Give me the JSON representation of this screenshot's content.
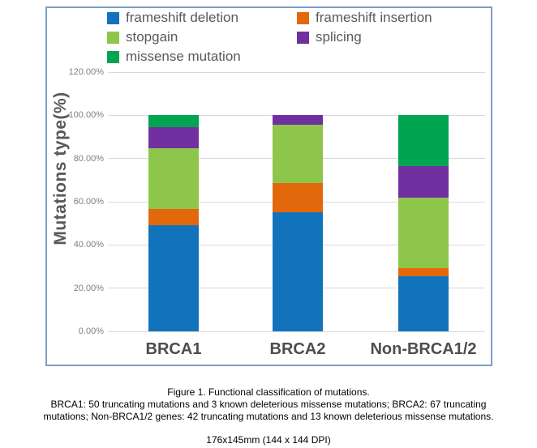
{
  "chart_data": {
    "type": "bar",
    "stacked": true,
    "title": "",
    "xlabel": "",
    "ylabel": "Mutations type(%)",
    "ylim": [
      0,
      120
    ],
    "grid": true,
    "legend_position": "top",
    "yticks": [
      120,
      100,
      80,
      60,
      40,
      20,
      0
    ],
    "ytick_labels": [
      "120.00%",
      "100.00%",
      "80.00%",
      "60.00%",
      "40.00%",
      "20.00%",
      "0.00%"
    ],
    "categories": [
      "BRCA1",
      "BRCA2",
      "Non-BRCA1/2"
    ],
    "series": [
      {
        "name": "frameshift deletion",
        "color": "#1273bd",
        "values": [
          49.06,
          55.22,
          25.45
        ]
      },
      {
        "name": "frameshift insertion",
        "color": "#e3680c",
        "values": [
          7.55,
          13.43,
          3.64
        ]
      },
      {
        "name": "stopgain",
        "color": "#8ec64c",
        "values": [
          28.3,
          26.87,
          32.73
        ]
      },
      {
        "name": "splicing",
        "color": "#7030a0",
        "values": [
          9.43,
          4.48,
          14.55
        ]
      },
      {
        "name": "missense mutation",
        "color": "#00a551",
        "values": [
          5.66,
          0,
          23.64
        ]
      }
    ]
  },
  "caption": {
    "title": "Figure 1. Functional classification of mutations.",
    "detail_line1": "BRCA1: 50 truncating mutations and 3 known deleterious missense mutations; BRCA2: 67 truncating",
    "detail_line2": "mutations; Non-BRCA1/2 genes: 42 truncating mutations and 13 known deleterious missense mutations.",
    "dimensions_note": "176x145mm (144 x 144 DPI)"
  },
  "colors": {
    "panel_border": "#7d9ec7",
    "gridline": "#d9d9d9",
    "axis_text": "#595959",
    "tick_text": "#7f7f7f"
  }
}
